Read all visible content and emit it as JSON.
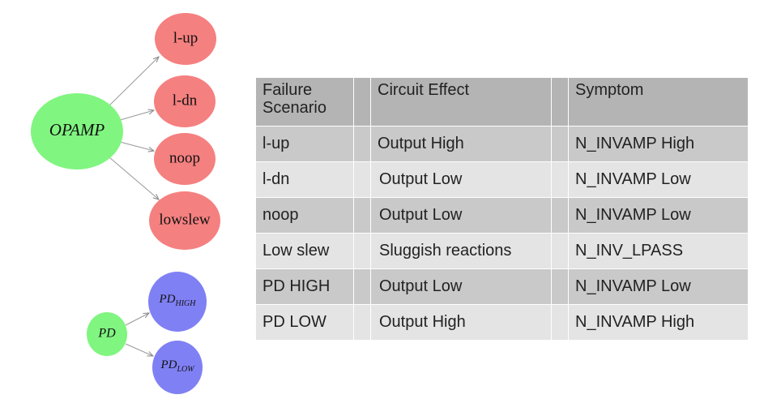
{
  "nodes": [
    {
      "label": "OPAMP"
    },
    {
      "label": "l-up"
    },
    {
      "label": "l-dn"
    },
    {
      "label": "noop"
    },
    {
      "label": "lowslew"
    },
    {
      "label": "PD"
    },
    {
      "label": "PD",
      "sub": "HIGH"
    },
    {
      "label": "PD",
      "sub": "LOW"
    }
  ],
  "table": {
    "header": [
      "Failure Scenario",
      "Circuit Effect",
      "Symptom"
    ],
    "rows": [
      [
        "l-up",
        "Output High",
        "N_INVAMP High"
      ],
      [
        "l-dn",
        "Output Low",
        "N_INVAMP Low"
      ],
      [
        "noop",
        "Output Low",
        "N_INVAMP Low"
      ],
      [
        "Low slew",
        "Sluggish reactions",
        "N_INV_LPASS"
      ],
      [
        "PD HIGH",
        "Output Low",
        "N_INVAMP Low"
      ],
      [
        "PD LOW",
        "Output High",
        "N_INVAMP High"
      ]
    ]
  }
}
